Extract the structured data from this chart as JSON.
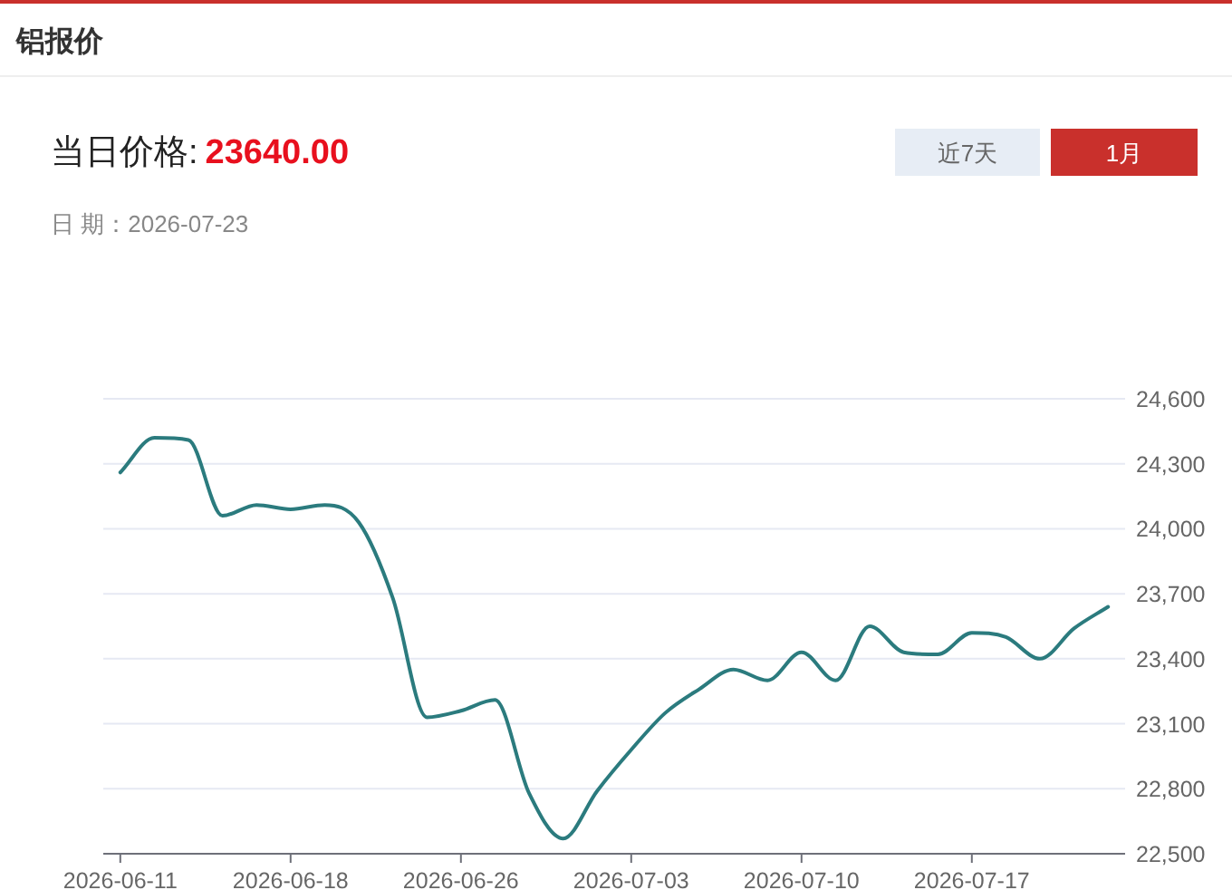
{
  "chart_data": {
    "type": "line",
    "title": "铝报价",
    "annotations": [
      "当日价格:",
      "23640.00",
      "近7天",
      "1月",
      "日 期：2026-07-23"
    ],
    "categories": [
      "2026-06-11",
      null,
      null,
      null,
      null,
      "2026-06-18",
      null,
      null,
      null,
      null,
      "2026-06-26",
      null,
      null,
      null,
      null,
      "2026-07-03",
      null,
      null,
      null,
      null,
      "2026-07-10",
      null,
      null,
      null,
      null,
      "2026-07-17",
      null,
      null,
      null,
      null
    ],
    "series": [
      {
        "color": "#2b7b7e",
        "values": [
          24260,
          24420,
          24410,
          24060,
          24110,
          24090,
          24110,
          24030,
          23680,
          23130,
          23160,
          23210,
          22780,
          22570,
          22790,
          22980,
          23150,
          23260,
          23350,
          23300,
          23430,
          23300,
          23550,
          23430,
          23420,
          23520,
          23500,
          23400,
          23540,
          23640
        ]
      }
    ],
    "ylim": [
      22500,
      24600
    ],
    "yticks": [
      {
        "value": 22500,
        "label": "22,500"
      },
      {
        "value": 22800,
        "label": "22,800"
      },
      {
        "value": 23100,
        "label": "23,100"
      },
      {
        "value": 23400,
        "label": "23,400"
      },
      {
        "value": 23700,
        "label": "23,700"
      },
      {
        "value": 24000,
        "label": "24,000"
      },
      {
        "value": 24300,
        "label": "24,300"
      },
      {
        "value": 24600,
        "label": "24,600"
      }
    ],
    "grid": "y",
    "marker": "none",
    "line_style": "solid"
  }
}
